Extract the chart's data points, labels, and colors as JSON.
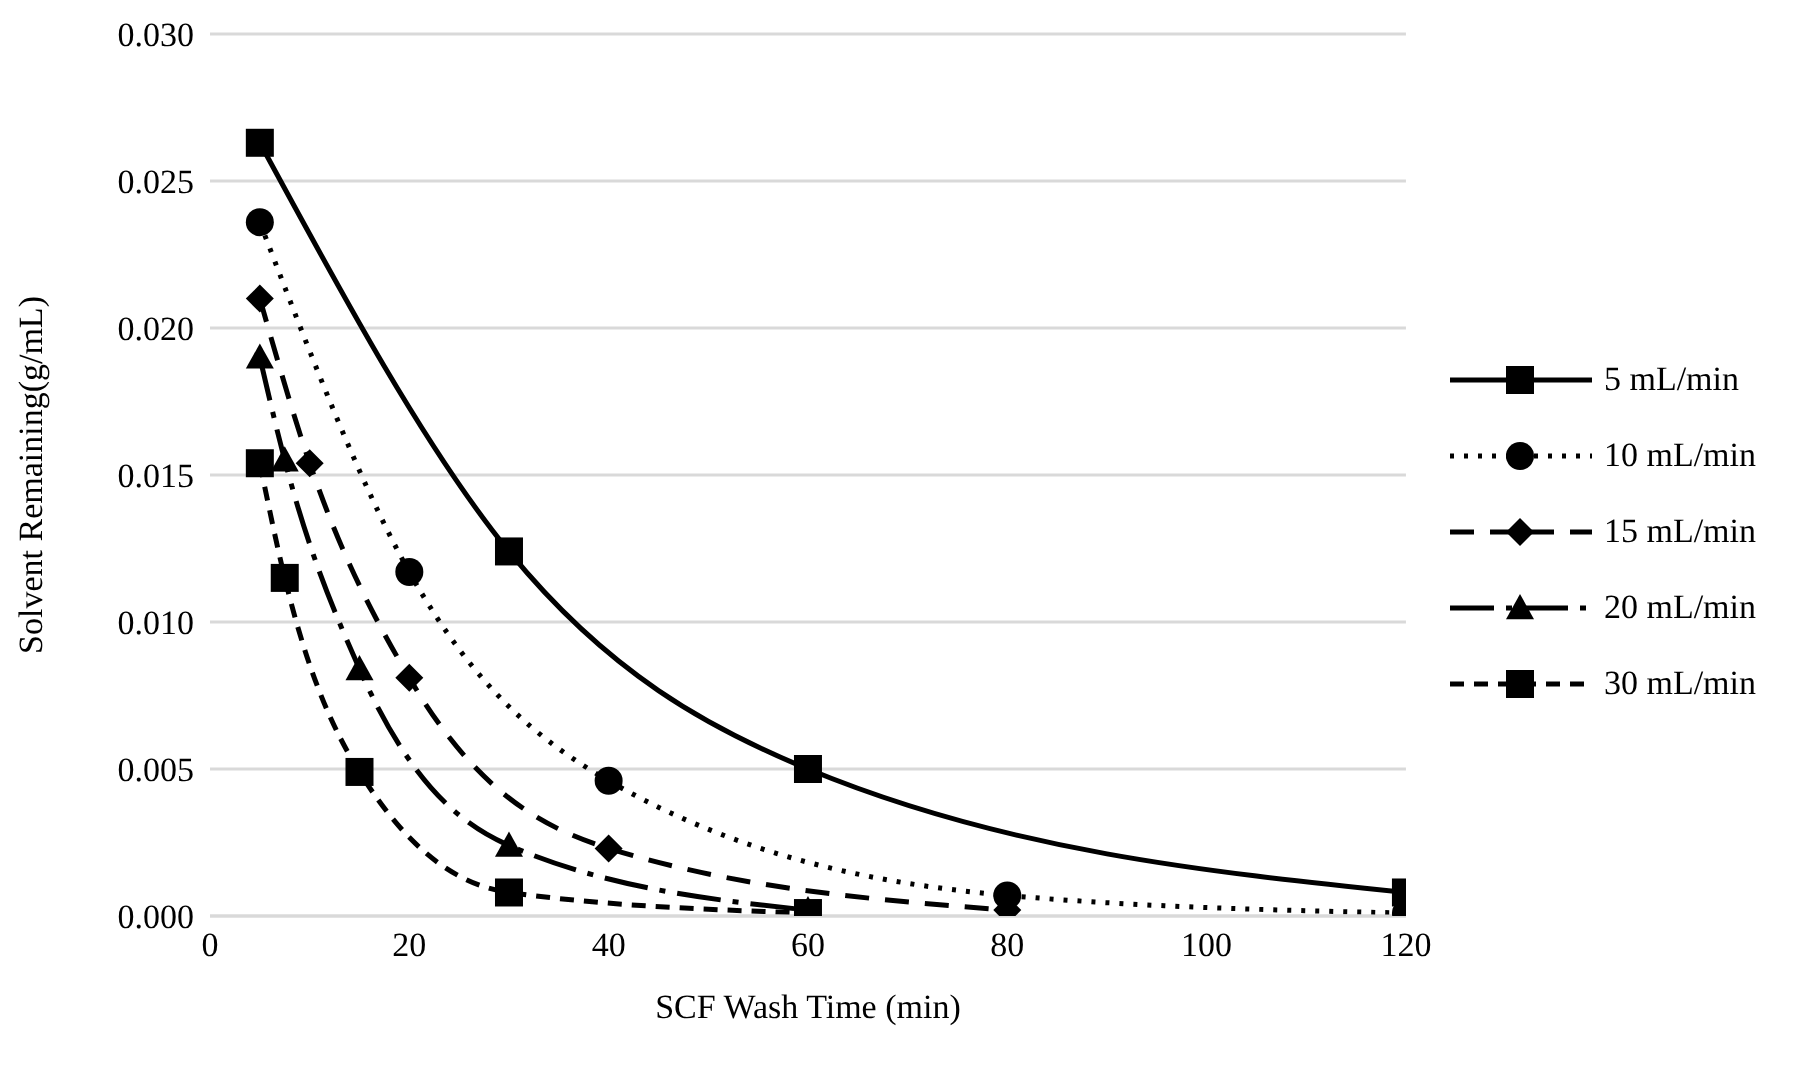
{
  "chart_data": {
    "type": "line",
    "xlabel": "SCF Wash Time (min)",
    "ylabel": "Solvent Remaining(g/mL)",
    "xlim": [
      0,
      120
    ],
    "xticks": [
      0,
      20,
      40,
      60,
      80,
      100,
      120
    ],
    "ylim": [
      0,
      0.03
    ],
    "yticks": [
      {
        "value": 0,
        "label": "0.000"
      },
      {
        "value": 0.005,
        "label": "0.005"
      },
      {
        "value": 0.01,
        "label": "0.010"
      },
      {
        "value": 0.015,
        "label": "0.015"
      },
      {
        "value": 0.02,
        "label": "0.020"
      },
      {
        "value": 0.025,
        "label": "0.025"
      },
      {
        "value": 0.03,
        "label": "0.030"
      }
    ],
    "grid": "y",
    "legend": "right",
    "series": [
      {
        "name": "5 mL/min",
        "color": "#000000",
        "marker": "square",
        "line_style": "solid",
        "x": [
          5,
          30,
          60,
          120
        ],
        "values": [
          0.0263,
          0.0124,
          0.005,
          0.0008
        ]
      },
      {
        "name": "10 mL/min",
        "color": "#000000",
        "marker": "circle",
        "line_style": "dotted",
        "x": [
          5,
          20,
          40,
          80,
          120
        ],
        "values": [
          0.0236,
          0.0117,
          0.0046,
          0.0007,
          0.0001
        ]
      },
      {
        "name": "15 mL/min",
        "color": "#000000",
        "marker": "diamond",
        "line_style": "dashed",
        "x": [
          5,
          10,
          20,
          40,
          80
        ],
        "values": [
          0.021,
          0.0154,
          0.0081,
          0.0023,
          0.0002
        ]
      },
      {
        "name": "20 mL/min",
        "color": "#000000",
        "marker": "triangle",
        "line_style": "dashed",
        "x": [
          5,
          7.5,
          15,
          30,
          60
        ],
        "values": [
          0.019,
          0.0155,
          0.0084,
          0.0024,
          0.0002
        ]
      },
      {
        "name": "30 mL/min",
        "color": "#000000",
        "marker": "square",
        "line_style": "dashed",
        "x": [
          5,
          7.5,
          15,
          30,
          60
        ],
        "values": [
          0.0154,
          0.0115,
          0.0049,
          0.0008,
          0.0001
        ]
      }
    ]
  }
}
